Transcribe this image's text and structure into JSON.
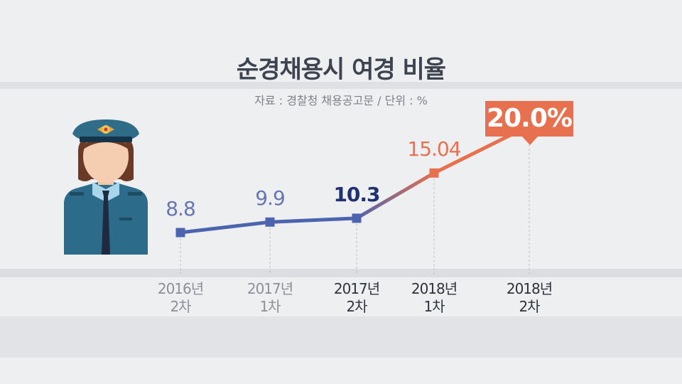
{
  "title": "순경채용시 여경 비율",
  "source": "자료 : 경찰청 채용공고문 / 단위 : %",
  "chart_data": {
    "type": "line",
    "title": "순경채용시 여경 비율",
    "subtitle": "자료 : 경찰청 채용공고문 / 단위 : %",
    "categories": [
      {
        "line1": "2016년",
        "line2": "2차"
      },
      {
        "line1": "2017년",
        "line2": "1차"
      },
      {
        "line1": "2017년",
        "line2": "2차"
      },
      {
        "line1": "2018년",
        "line2": "1차"
      },
      {
        "line1": "2018년",
        "line2": "2차"
      }
    ],
    "values": [
      8.8,
      9.9,
      10.3,
      15.04,
      20.0
    ],
    "value_labels": [
      "8.8",
      "9.9",
      "10.3",
      "15.04",
      "20.0%"
    ],
    "ylim": [
      5,
      22
    ],
    "grid": false,
    "colors": {
      "blue": "#4b64ad",
      "light_blue_text": "#6776b0",
      "dark_blue_text": "#1f3170",
      "orange": "#e7704f",
      "grey_text": "#8d9098",
      "dark_text": "#2f333b"
    }
  },
  "illustration": {
    "icon": "police-officer-icon"
  }
}
